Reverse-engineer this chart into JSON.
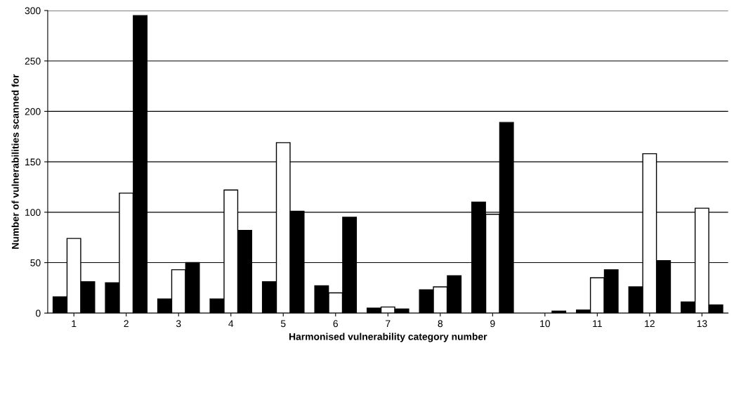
{
  "chart_data": {
    "type": "bar",
    "xlabel": "Harmonised vulnerability category number",
    "ylabel": "Number of vulnerabilities scanned for",
    "categories": [
      "1",
      "2",
      "3",
      "4",
      "5",
      "6",
      "7",
      "8",
      "9",
      "10",
      "11",
      "12",
      "13"
    ],
    "series": [
      {
        "color": "#000000",
        "values": [
          16,
          30,
          14,
          14,
          31,
          27,
          5,
          23,
          110,
          null,
          3,
          26,
          11
        ]
      },
      {
        "color": "#ffffff",
        "values": [
          74,
          119,
          43,
          122,
          169,
          20,
          6,
          26,
          98,
          null,
          35,
          158,
          104
        ]
      },
      {
        "color": "#000000",
        "values": [
          31,
          295,
          50,
          82,
          101,
          95,
          4,
          37,
          189,
          2,
          43,
          52,
          8
        ]
      }
    ],
    "ylim": [
      0,
      300
    ],
    "yticks": [
      0,
      50,
      100,
      150,
      200,
      250,
      300
    ],
    "grid": "y"
  }
}
